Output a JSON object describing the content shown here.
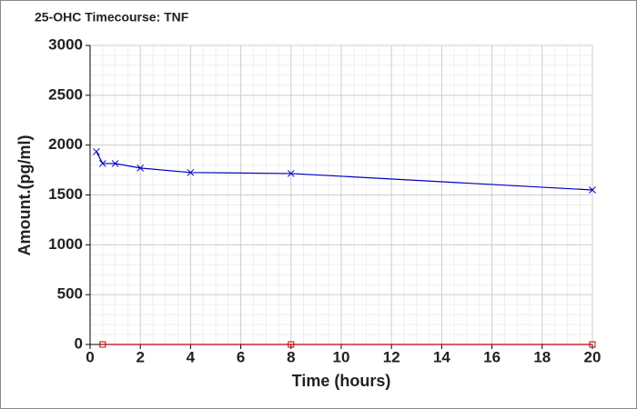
{
  "chart_data": {
    "type": "line",
    "title": "25-OHC Timecourse: TNF",
    "x_label": "Time (hours)",
    "y_label": "Amount.(pg/ml)",
    "xlim": [
      0,
      20
    ],
    "xticks": [
      0,
      2,
      4,
      6,
      8,
      10,
      12,
      14,
      16,
      18,
      20
    ],
    "ylim": [
      0,
      3000
    ],
    "yticks": [
      0,
      500,
      1000,
      1500,
      2000,
      2500,
      3000
    ],
    "grid": true,
    "minor_grid": true,
    "series": [
      {
        "color": "#0000c0",
        "marker": "x",
        "x": [
          0.25,
          0.5,
          1,
          2,
          4,
          8,
          20
        ],
        "values": [
          1935,
          1815,
          1815,
          1770,
          1725,
          1715,
          1550
        ]
      },
      {
        "color": "#c00000",
        "marker": "square",
        "x": [
          0.5,
          8,
          20
        ],
        "values": [
          0,
          0,
          0
        ]
      }
    ]
  }
}
